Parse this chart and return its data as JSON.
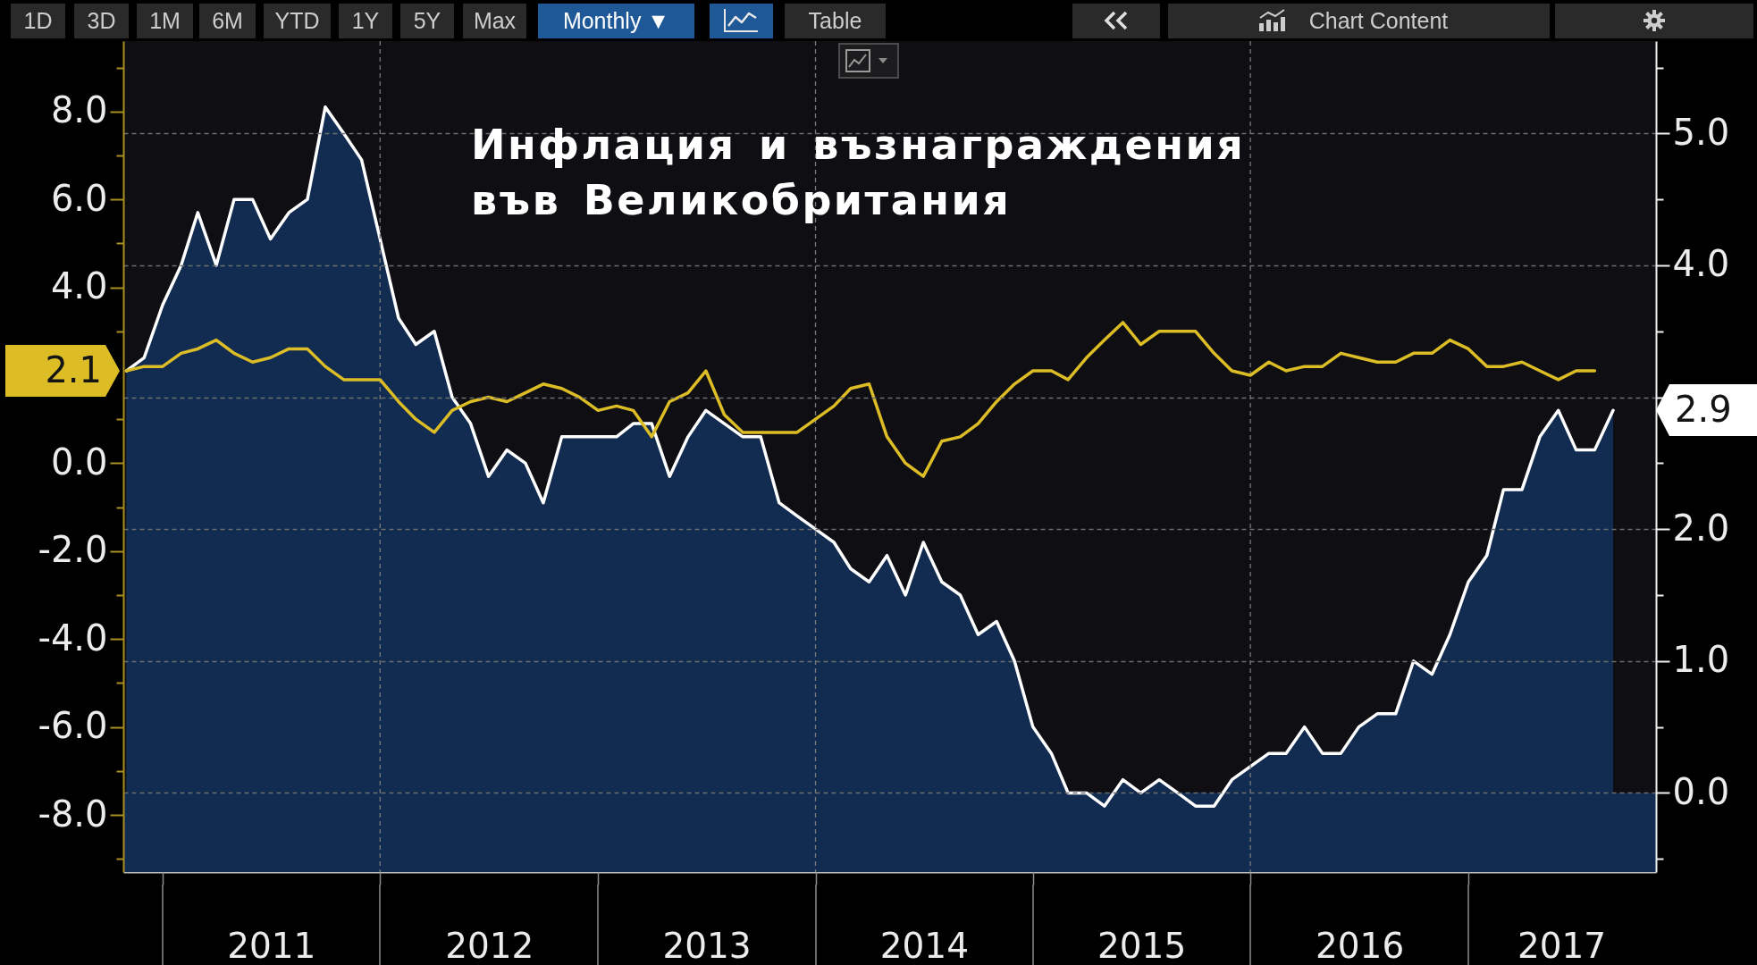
{
  "chart_data": {
    "type": "line",
    "title": "Инфлация и възнаграждения във Великобритания",
    "x": [
      "2010-11",
      "2010-12",
      "2011-01",
      "2011-02",
      "2011-03",
      "2011-04",
      "2011-05",
      "2011-06",
      "2011-07",
      "2011-08",
      "2011-09",
      "2011-10",
      "2011-11",
      "2011-12",
      "2012-01",
      "2012-02",
      "2012-03",
      "2012-04",
      "2012-05",
      "2012-06",
      "2012-07",
      "2012-08",
      "2012-09",
      "2012-10",
      "2012-11",
      "2012-12",
      "2013-01",
      "2013-02",
      "2013-03",
      "2013-04",
      "2013-05",
      "2013-06",
      "2013-07",
      "2013-08",
      "2013-09",
      "2013-10",
      "2013-11",
      "2013-12",
      "2014-01",
      "2014-02",
      "2014-03",
      "2014-04",
      "2014-05",
      "2014-06",
      "2014-07",
      "2014-08",
      "2014-09",
      "2014-10",
      "2014-11",
      "2014-12",
      "2015-01",
      "2015-02",
      "2015-03",
      "2015-04",
      "2015-05",
      "2015-06",
      "2015-07",
      "2015-08",
      "2015-09",
      "2015-10",
      "2015-11",
      "2015-12",
      "2016-01",
      "2016-02",
      "2016-03",
      "2016-04",
      "2016-05",
      "2016-06",
      "2016-07",
      "2016-08",
      "2016-09",
      "2016-10",
      "2016-11",
      "2016-12",
      "2017-01",
      "2017-02",
      "2017-03",
      "2017-04",
      "2017-05",
      "2017-06",
      "2017-07",
      "2017-08",
      "2017-09"
    ],
    "xlim": [
      "2010-10-27",
      "2017-11-12"
    ],
    "xticks": [
      {
        "value": "2011-01-01",
        "label": null
      },
      {
        "value": "2011-07-02",
        "label": "2011"
      },
      {
        "value": "2012-01-01",
        "label": null
      },
      {
        "value": "2012-07-02",
        "label": "2012"
      },
      {
        "value": "2013-01-01",
        "label": null
      },
      {
        "value": "2013-07-02",
        "label": "2013"
      },
      {
        "value": "2014-01-01",
        "label": null
      },
      {
        "value": "2014-07-02",
        "label": "2014"
      },
      {
        "value": "2015-01-01",
        "label": null
      },
      {
        "value": "2015-07-02",
        "label": "2015"
      },
      {
        "value": "2016-01-01",
        "label": null
      },
      {
        "value": "2016-07-02",
        "label": "2016"
      },
      {
        "value": "2017-01-01",
        "label": null
      },
      {
        "value": "2017-06-06",
        "label": "2017"
      }
    ],
    "ylim": [
      -9.3,
      9.6
    ],
    "yticks": [
      {
        "value": -9,
        "label": null
      },
      {
        "value": -8,
        "label": "-8.0"
      },
      {
        "value": -7,
        "label": null
      },
      {
        "value": -6,
        "label": "-6.0"
      },
      {
        "value": -5,
        "label": null
      },
      {
        "value": -4,
        "label": "-4.0"
      },
      {
        "value": -3,
        "label": null
      },
      {
        "value": -2,
        "label": "-2.0"
      },
      {
        "value": -1,
        "label": null
      },
      {
        "value": 0,
        "label": "0.0"
      },
      {
        "value": 1,
        "label": null
      },
      {
        "value": 3,
        "label": null
      },
      {
        "value": 4,
        "label": "4.0"
      },
      {
        "value": 5,
        "label": null
      },
      {
        "value": 6,
        "label": "6.0"
      },
      {
        "value": 7,
        "label": null
      },
      {
        "value": 8,
        "label": "8.0"
      },
      {
        "value": 9,
        "label": null
      }
    ],
    "y2lim": [
      -0.6,
      5.7
    ],
    "y2ticks": [
      {
        "value": -0.5,
        "label": null
      },
      {
        "value": 0,
        "label": "0.0"
      },
      {
        "value": 0.5,
        "label": null
      },
      {
        "value": 1,
        "label": "1.0"
      },
      {
        "value": 1.5,
        "label": null
      },
      {
        "value": 2,
        "label": "2.0"
      },
      {
        "value": 2.5,
        "label": null
      },
      {
        "value": 3,
        "label": null
      },
      {
        "value": 3.5,
        "label": null
      },
      {
        "value": 4,
        "label": "4.0"
      },
      {
        "value": 4.5,
        "label": null
      },
      {
        "value": 5,
        "label": "5.0"
      },
      {
        "value": 5.5,
        "label": null
      }
    ],
    "series": [
      {
        "type": "area",
        "axis": "y2",
        "color": "#112c50",
        "values": [
          3.2,
          3.3,
          3.7,
          4.0,
          4.4,
          4.0,
          4.5,
          4.5,
          4.2,
          4.4,
          4.5,
          5.2,
          5.0,
          4.8,
          4.2,
          3.6,
          3.4,
          3.5,
          3.0,
          2.8,
          2.4,
          2.6,
          2.5,
          2.2,
          2.7,
          2.7,
          2.7,
          2.7,
          2.8,
          2.8,
          2.4,
          2.7,
          2.9,
          2.8,
          2.7,
          2.7,
          2.2,
          2.1,
          2.0,
          1.9,
          1.7,
          1.6,
          1.8,
          1.5,
          1.9,
          1.6,
          1.5,
          1.2,
          1.3,
          1.0,
          0.5,
          0.3,
          0.0,
          0.0,
          -0.1,
          0.1,
          0.0,
          0.1,
          0.0,
          -0.1,
          -0.1,
          0.1,
          0.2,
          0.3,
          0.3,
          0.5,
          0.3,
          0.3,
          0.5,
          0.6,
          0.6,
          1.0,
          0.9,
          1.2,
          1.6,
          1.8,
          2.3,
          2.3,
          2.7,
          2.9,
          2.6,
          2.6,
          2.9
        ],
        "value_labels": [
          null,
          null,
          null,
          null,
          null,
          null,
          null,
          null,
          null,
          null,
          null,
          null,
          null,
          null,
          null,
          null,
          null,
          null,
          null,
          null,
          null,
          null,
          null,
          null,
          null,
          null,
          null,
          null,
          null,
          null,
          null,
          null,
          null,
          null,
          null,
          null,
          null,
          null,
          null,
          null,
          null,
          null,
          null,
          null,
          null,
          null,
          null,
          null,
          null,
          null,
          null,
          null,
          null,
          null,
          null,
          null,
          null,
          null,
          null,
          null,
          null,
          null,
          null,
          null,
          null,
          null,
          null,
          null,
          null,
          null,
          null,
          null,
          null,
          null,
          null,
          null,
          null,
          null,
          null,
          null,
          null,
          null,
          "2.9"
        ]
      },
      {
        "color": "#dcbd26",
        "values": [
          2.1,
          2.2,
          2.2,
          2.5,
          2.6,
          2.8,
          2.5,
          2.3,
          2.4,
          2.6,
          2.6,
          2.2,
          1.9,
          1.9,
          1.9,
          1.4,
          1.0,
          0.7,
          1.2,
          1.4,
          1.5,
          1.4,
          1.6,
          1.8,
          1.7,
          1.5,
          1.2,
          1.3,
          1.2,
          0.6,
          1.4,
          1.6,
          2.1,
          1.1,
          0.7,
          0.7,
          0.7,
          0.7,
          1.0,
          1.3,
          1.7,
          1.8,
          0.6,
          0.0,
          -0.3,
          0.5,
          0.6,
          0.9,
          1.4,
          1.8,
          2.1,
          2.1,
          1.9,
          2.4,
          2.8,
          3.2,
          2.7,
          3.0,
          3.0,
          3.0,
          2.5,
          2.1,
          2.0,
          2.3,
          2.1,
          2.2,
          2.2,
          2.5,
          2.4,
          2.3,
          2.3,
          2.5,
          2.5,
          2.8,
          2.6,
          2.2,
          2.2,
          2.3,
          2.1,
          1.9,
          2.1,
          2.1,
          null
        ],
        "value_labels": [
          "2.1",
          null,
          null,
          null,
          null,
          null,
          null,
          null,
          null,
          null,
          null,
          null,
          null,
          null,
          null,
          null,
          null,
          null,
          null,
          null,
          null,
          null,
          null,
          null,
          null,
          null,
          null,
          null,
          null,
          null,
          null,
          null,
          null,
          null,
          null,
          null,
          null,
          null,
          null,
          null,
          null,
          null,
          null,
          null,
          null,
          null,
          null,
          null,
          null,
          null,
          null,
          null,
          null,
          null,
          null,
          null,
          null,
          null,
          null,
          null,
          null,
          null,
          null,
          null,
          null,
          null,
          null,
          null,
          null,
          null,
          null,
          null,
          null,
          null,
          null,
          null,
          null,
          null,
          null,
          null,
          null,
          null,
          null
        ]
      }
    ],
    "grid": "y",
    "bands": [
      {
        "axis": "y2",
        "from": -0.6,
        "to": 0,
        "color": "#112c50"
      }
    ],
    "ref_lines": [
      {
        "axis": "x",
        "value": "2012-01-01",
        "color": "#7a7a7a",
        "line_style": "dashed"
      },
      {
        "axis": "x",
        "value": "2014-01-01",
        "color": "#7a7a7a",
        "line_style": "dashed"
      },
      {
        "axis": "x",
        "value": "2016-01-01",
        "color": "#7a7a7a",
        "line_style": "dashed"
      }
    ],
    "annotations": [
      "1D",
      "3D",
      "1M",
      "6M",
      "YTD",
      "1Y",
      "5Y",
      "Max",
      "Monthly ▼",
      "Table",
      "Chart Content"
    ]
  }
}
